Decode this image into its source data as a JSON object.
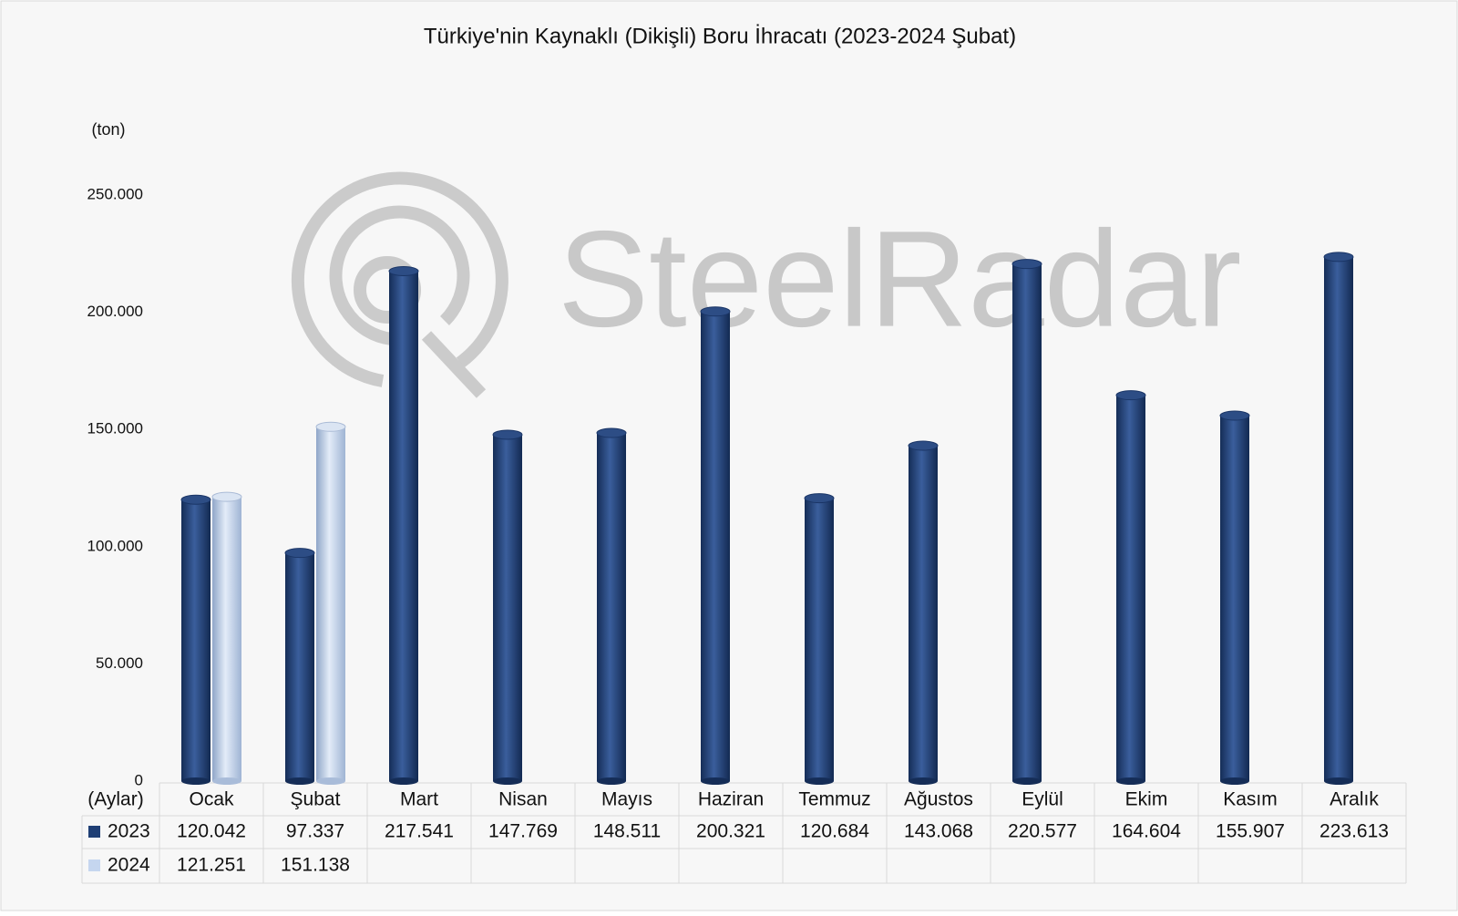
{
  "chart_data": {
    "type": "bar",
    "title": "Türkiye'nin Kaynaklı (Dikişli) Boru İhracatı (2023-2024 Şubat)",
    "y_label": "(ton)",
    "x_label": "(Aylar)",
    "watermark": "SteelRadar",
    "categories": [
      "Ocak",
      "Şubat",
      "Mart",
      "Nisan",
      "Mayıs",
      "Haziran",
      "Temmuz",
      "Ağustos",
      "Eylül",
      "Ekim",
      "Kasım",
      "Aralık"
    ],
    "series": [
      {
        "name": "2023",
        "color": "#1f3f75",
        "values": [
          120042,
          97337,
          217541,
          147769,
          148511,
          200321,
          120684,
          143068,
          220577,
          164604,
          155907,
          223613
        ],
        "value_labels": [
          "120.042",
          "97.337",
          "217.541",
          "147.769",
          "148.511",
          "200.321",
          "120.684",
          "143.068",
          "220.577",
          "164.604",
          "155.907",
          "223.613"
        ]
      },
      {
        "name": "2024",
        "color": "#c5d6ef",
        "values": [
          121251,
          151138,
          null,
          null,
          null,
          null,
          null,
          null,
          null,
          null,
          null,
          null
        ],
        "value_labels": [
          "121.251",
          "151.138",
          null,
          null,
          null,
          null,
          null,
          null,
          null,
          null,
          null,
          null
        ]
      }
    ],
    "ylim": [
      0,
      250000
    ],
    "yticks": [
      0,
      {
        "value": 50000,
        "label": "50.000"
      },
      {
        "value": 100000,
        "label": "100.000"
      },
      {
        "value": 150000,
        "label": "150.000"
      },
      {
        "value": 200000,
        "label": "200.000"
      },
      {
        "value": 250000,
        "label": "250.000"
      }
    ]
  }
}
